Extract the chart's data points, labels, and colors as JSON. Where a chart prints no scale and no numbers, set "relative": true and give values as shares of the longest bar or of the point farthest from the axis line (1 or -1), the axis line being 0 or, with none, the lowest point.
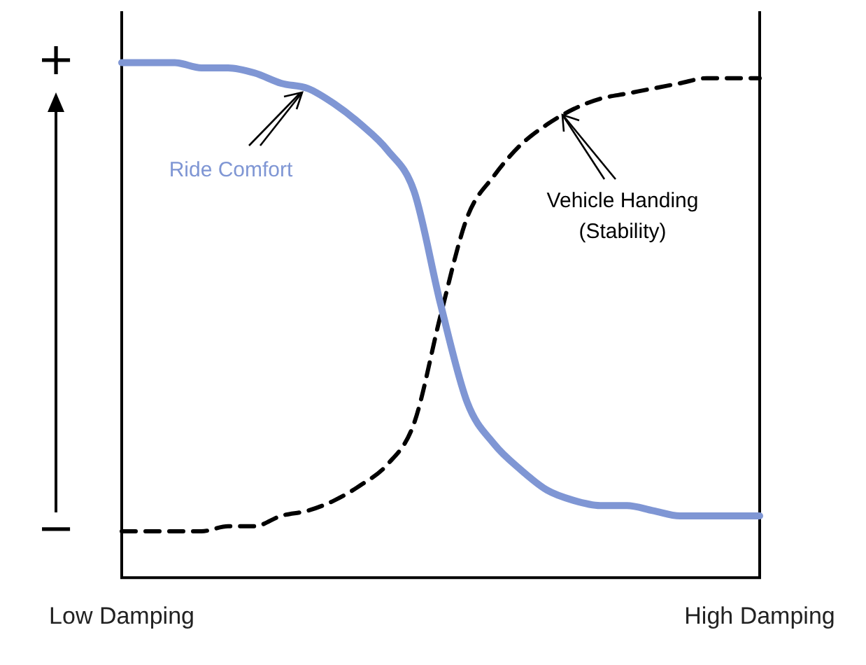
{
  "chart_data": {
    "type": "line",
    "relative": true,
    "legend": false,
    "marker": "none",
    "categories": [
      "Low Damping",
      null,
      null,
      null,
      null,
      null,
      null,
      null,
      null,
      null,
      null,
      null,
      null,
      null,
      null,
      null,
      null,
      null,
      null,
      null,
      null,
      null,
      null,
      null,
      "High Damping"
    ],
    "series": [
      {
        "name": "Ride Comfort",
        "color": "#7f96d4",
        "line_style": "solid",
        "values": [
          1.0,
          1.0,
          1.0,
          0.99,
          0.99,
          0.98,
          0.96,
          0.95,
          0.92,
          0.88,
          0.83,
          0.75,
          0.53,
          0.34,
          0.26,
          0.21,
          0.17,
          0.15,
          0.14,
          0.14,
          0.13,
          0.12,
          0.12,
          0.12,
          0.12
        ]
      },
      {
        "name": "Vehicle Handing (Stability)",
        "color": "#000000",
        "line_style": "dashed",
        "values": [
          0.09,
          0.09,
          0.09,
          0.09,
          0.1,
          0.1,
          0.12,
          0.13,
          0.15,
          0.18,
          0.22,
          0.3,
          0.51,
          0.7,
          0.78,
          0.84,
          0.88,
          0.91,
          0.93,
          0.94,
          0.95,
          0.96,
          0.97,
          0.97,
          0.97
        ]
      }
    ],
    "annotations": [
      "+",
      "−"
    ]
  }
}
